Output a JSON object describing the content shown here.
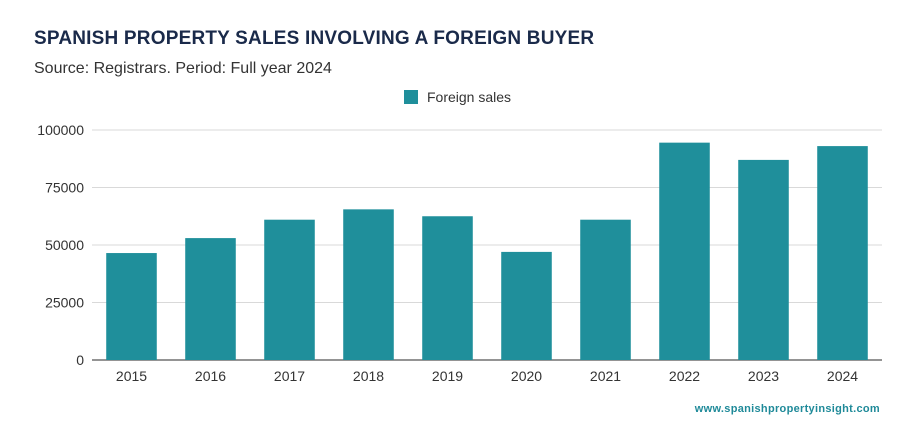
{
  "colors": {
    "bar": "#1f8f9b",
    "grid": "#d9d9d9",
    "axis": "#555555",
    "text": "#333333",
    "link": "#1f8a99"
  },
  "legend": {
    "label": "Foreign sales"
  },
  "footer": {
    "url": "www.spanishpropertyinsight.com"
  },
  "chart_data": {
    "type": "bar",
    "title": "SPANISH PROPERTY SALES INVOLVING A FOREIGN BUYER",
    "subtitle": "Source: Registrars. Period: Full year 2024",
    "categories": [
      "2015",
      "2016",
      "2017",
      "2018",
      "2019",
      "2020",
      "2021",
      "2022",
      "2023",
      "2024"
    ],
    "series": [
      {
        "name": "Foreign sales",
        "values": [
          46500,
          53000,
          61000,
          65500,
          62500,
          47000,
          61000,
          94500,
          87000,
          93000
        ]
      }
    ],
    "yticks": [
      "0",
      "25000",
      "50000",
      "75000",
      "100000"
    ],
    "ylim": [
      0,
      100000
    ],
    "xlabel": "",
    "ylabel": "",
    "legend_position": "top-center",
    "grid": true
  }
}
